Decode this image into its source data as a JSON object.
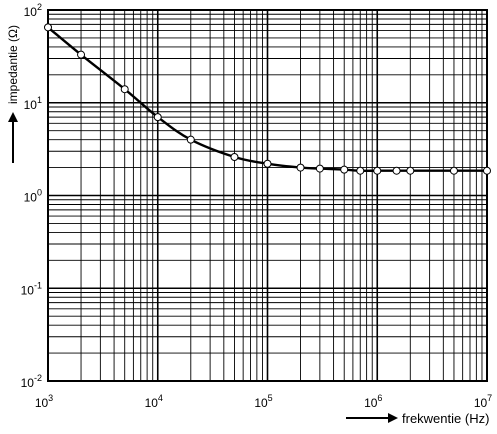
{
  "chart_data": {
    "type": "line",
    "title": "",
    "xlabel": "frekwentie (Hz)",
    "ylabel": "impedantie (Ω)",
    "x_scale": "log",
    "y_scale": "log",
    "xlim": [
      1000,
      10000000
    ],
    "ylim": [
      0.01,
      100
    ],
    "grid": true,
    "x_ticks": [
      {
        "value": 1000,
        "base": "10",
        "exp": "3"
      },
      {
        "value": 10000,
        "base": "10",
        "exp": "4"
      },
      {
        "value": 100000,
        "base": "10",
        "exp": "5"
      },
      {
        "value": 1000000,
        "base": "10",
        "exp": "6"
      },
      {
        "value": 10000000,
        "base": "10",
        "exp": "7"
      }
    ],
    "y_ticks": [
      {
        "value": 0.01,
        "base": "10",
        "exp": "-2"
      },
      {
        "value": 0.1,
        "base": "10",
        "exp": "-1"
      },
      {
        "value": 1,
        "base": "10",
        "exp": "0"
      },
      {
        "value": 10,
        "base": "10",
        "exp": "1"
      },
      {
        "value": 100,
        "base": "10",
        "exp": "2"
      }
    ],
    "series": [
      {
        "marker": "circle",
        "x": [
          1000,
          2000,
          5000,
          10000,
          20000,
          50000,
          100000,
          200000,
          300000,
          500000,
          700000,
          1000000,
          1500000,
          2000000,
          5000000,
          10000000
        ],
        "y": [
          65,
          33,
          14,
          7,
          4,
          2.6,
          2.2,
          2.0,
          1.95,
          1.9,
          1.85,
          1.85,
          1.85,
          1.85,
          1.85,
          1.85
        ]
      }
    ]
  },
  "colors": {
    "background": "#ffffff",
    "ink": "#000000"
  }
}
